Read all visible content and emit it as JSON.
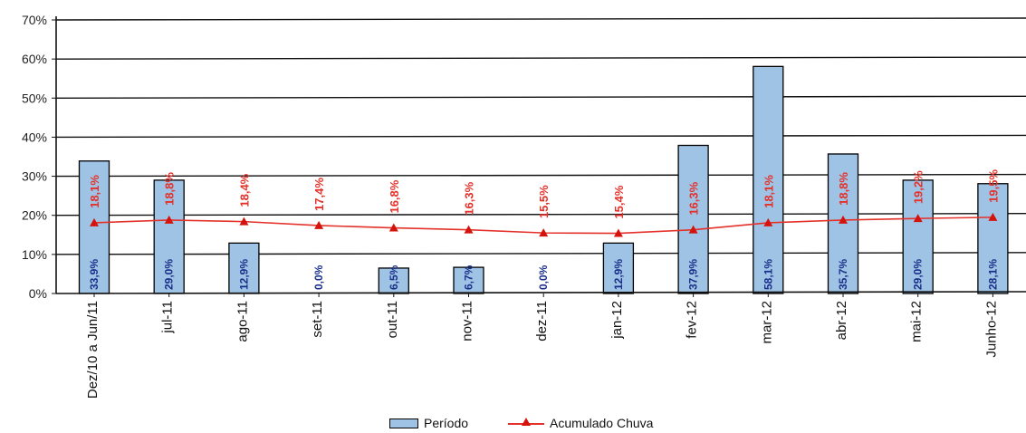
{
  "chart_data": {
    "type": "bar",
    "categories": [
      "Dez/10 a Jun/11",
      "jul-11",
      "ago-11",
      "set-11",
      "out-11",
      "nov-11",
      "dez-11",
      "jan-12",
      "fev-12",
      "mar-12",
      "abr-12",
      "mai-12",
      "Junho-12"
    ],
    "series": [
      {
        "name": "Período",
        "type": "bar",
        "color": "#9fc3e4",
        "values": [
          33.9,
          29.0,
          12.9,
          0.0,
          6.5,
          6.7,
          0.0,
          12.9,
          37.9,
          58.1,
          35.7,
          29.0,
          28.1
        ],
        "labels": [
          "33,9%",
          "29,0%",
          "12,9%",
          "0,0%",
          "6,5%",
          "6,7%",
          "0,0%",
          "12,9%",
          "37,9%",
          "58,1%",
          "35,7%",
          "29,0%",
          "28,1%"
        ]
      },
      {
        "name": "Acumulado Chuva",
        "type": "line",
        "color": "#e4322b",
        "values": [
          18.1,
          18.8,
          18.4,
          17.4,
          16.8,
          16.3,
          15.5,
          15.4,
          16.3,
          18.1,
          18.8,
          19.2,
          19.5
        ],
        "labels": [
          "18,1%",
          "18,8%",
          "18,4%",
          "17,4%",
          "16,8%",
          "16,3%",
          "15,5%",
          "15,4%",
          "16,3%",
          "18,1%",
          "18,8%",
          "19,2%",
          "19,5%"
        ]
      }
    ],
    "ylim": [
      0,
      70
    ],
    "yticks": [
      "0%",
      "10%",
      "20%",
      "30%",
      "40%",
      "50%",
      "60%",
      "70%"
    ],
    "grid": true,
    "legend_position": "bottom"
  }
}
